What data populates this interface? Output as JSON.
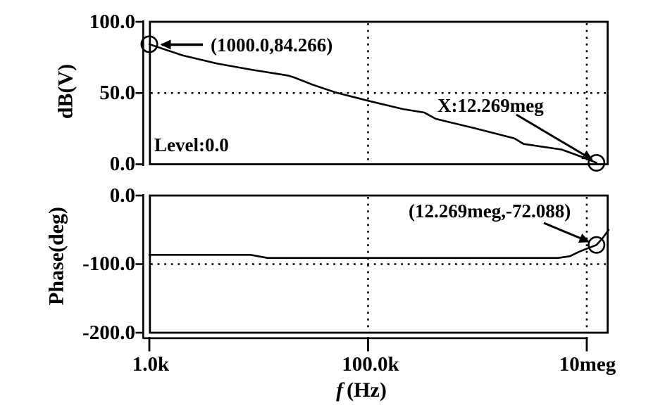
{
  "figure": {
    "background": "#ffffff",
    "foreground": "#000000",
    "xlabel_symbol": "f",
    "xlabel_unit": "(Hz)",
    "x_scale": "log",
    "x_ticks": [
      {
        "label": "1.0k",
        "value": 1000
      },
      {
        "label": "100.0k",
        "value": 100000
      },
      {
        "label": "10meg",
        "value": 10000000
      }
    ],
    "xlim": [
      1000,
      15850000
    ]
  },
  "chart_data": [
    {
      "type": "line",
      "name": "magnitude",
      "ylabel": "dB(V)",
      "ylim": [
        0,
        100
      ],
      "y_ticks": [
        {
          "label": "100.0",
          "value": 100
        },
        {
          "label": "50.0",
          "value": 50
        },
        {
          "label": "0.0",
          "value": 0
        }
      ],
      "y_gridlines": [
        50
      ],
      "x_gridlines": [
        100000,
        10000000
      ],
      "grid_style": "dotted",
      "level_label": "Level:0.0",
      "series": [
        {
          "name": "dB(V)",
          "points": [
            [
              1000,
              84.266
            ],
            [
              2000,
              76.5
            ],
            [
              4200,
              70.6
            ],
            [
              8800,
              66.2
            ],
            [
              18400,
              62.3
            ],
            [
              21400,
              60.8
            ],
            [
              31000,
              55.9
            ],
            [
              50000,
              50.5
            ],
            [
              100000,
              44.6
            ],
            [
              209000,
              38.7
            ],
            [
              327000,
              36.3
            ],
            [
              415000,
              31.9
            ],
            [
              921000,
              25.5
            ],
            [
              2180000,
              18.1
            ],
            [
              2650000,
              14.2
            ],
            [
              5900000,
              10.3
            ],
            [
              9600000,
              4.4
            ],
            [
              12269000,
              1.0
            ]
          ]
        }
      ],
      "markers": [
        {
          "x": 1000.0,
          "y": 84.266,
          "label": "(1000.0,84.266)"
        },
        {
          "x": 12269000,
          "y": 1.0,
          "label": "X:12.269meg"
        }
      ]
    },
    {
      "type": "line",
      "name": "phase",
      "ylabel": "Phase(deg)",
      "ylim": [
        -200,
        0
      ],
      "y_ticks": [
        {
          "label": "0.0",
          "value": 0
        },
        {
          "label": "-100.0",
          "value": -100
        },
        {
          "label": "-200.0",
          "value": -200
        }
      ],
      "y_gridlines": [
        -100
      ],
      "x_gridlines": [
        100000,
        10000000
      ],
      "grid_style": "dotted",
      "series": [
        {
          "name": "Phase(deg)",
          "points": [
            [
              1000,
              -86.5
            ],
            [
              8400,
              -86.5
            ],
            [
              12000,
              -91.0
            ],
            [
              5500000,
              -91.0
            ],
            [
              7000000,
              -88.5
            ],
            [
              8500000,
              -82.0
            ],
            [
              10000000,
              -77.5
            ],
            [
              12269000,
              -72.088
            ],
            [
              14000000,
              -62.0
            ],
            [
              15850000,
              -50.0
            ]
          ]
        }
      ],
      "markers": [
        {
          "x": 12269000,
          "y": -72.088,
          "label": "(12.269meg,-72.088)"
        }
      ]
    }
  ]
}
